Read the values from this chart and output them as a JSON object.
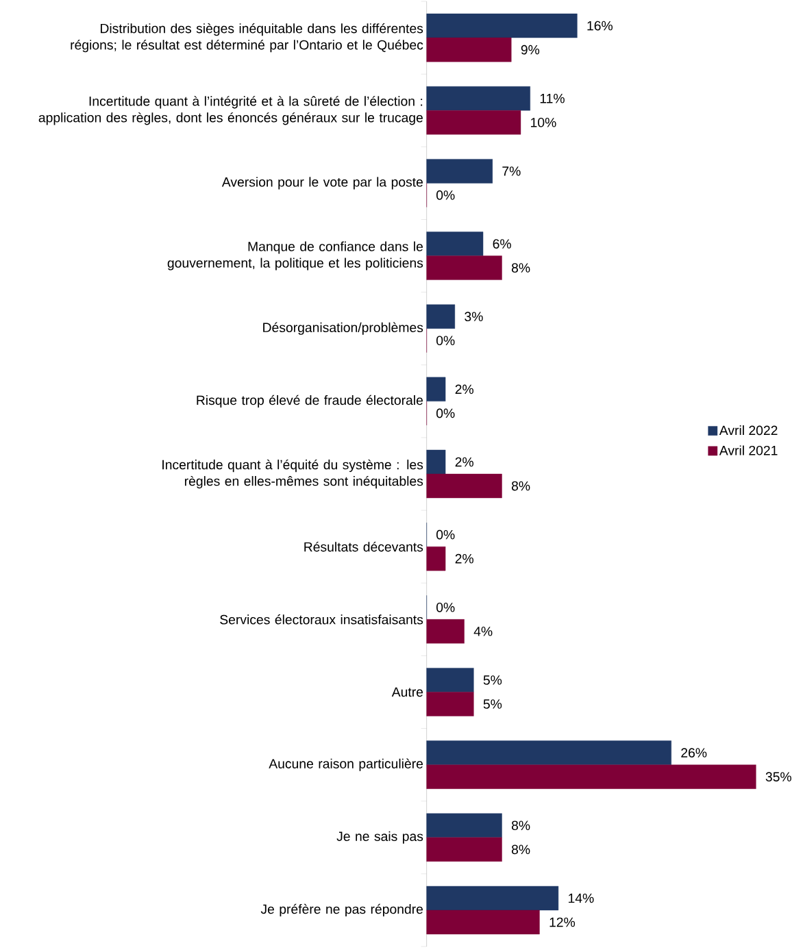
{
  "chart_data": {
    "type": "bar",
    "orientation": "horizontal",
    "legend": "right",
    "categories": [
      "Distribution des sièges inéquitable dans les différentes régions; le résultat est déterminé par l’Ontario et le Québec",
      "Incertitude quant à l’intégrité et à la sûreté de l’élection : application des règles, dont les énoncés généraux sur le trucage",
      "Aversion pour le vote par la poste",
      "Manque de confiance dans le gouvernement, la politique et les politiciens",
      "Désorganisation/problèmes",
      "Risque trop élevé de fraude électorale",
      "Incertitude quant à l’équité du système : les règles en elles-mêmes sont inéquitables",
      "Résultats décevants",
      "Services électoraux insatisfaisants",
      "Autre",
      "Aucune raison particulière",
      "Je ne sais pas",
      "Je préfère ne pas répondre"
    ],
    "series": [
      {
        "name": "Avril 2022",
        "color": "#1f3864",
        "values": [
          16,
          11,
          7,
          6,
          3,
          2,
          2,
          0,
          0,
          5,
          26,
          8,
          14
        ],
        "value_labels": [
          "16%",
          "11%",
          "7%",
          "6%",
          "3%",
          "2%",
          "2%",
          "0%",
          "0%",
          "5%",
          "26%",
          "8%",
          "14%"
        ]
      },
      {
        "name": "Avril 2021",
        "color": "#7f0037",
        "values": [
          9,
          10,
          0,
          8,
          0,
          0,
          8,
          2,
          4,
          5,
          35,
          8,
          12
        ],
        "value_labels": [
          "9%",
          "10%",
          "0%",
          "8%",
          "0%",
          "0%",
          "8%",
          "2%",
          "4%",
          "5%",
          "35%",
          "8%",
          "12%"
        ]
      }
    ]
  }
}
